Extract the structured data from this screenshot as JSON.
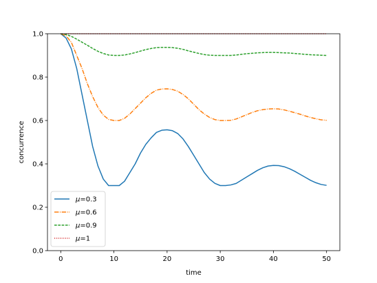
{
  "chart_data": {
    "type": "line",
    "title": "",
    "xlabel": "time",
    "ylabel": "concurrence",
    "xlim": [
      -2.5,
      52.5
    ],
    "ylim": [
      0.0,
      1.0
    ],
    "xticks": [
      0,
      10,
      20,
      30,
      40,
      50
    ],
    "yticks": [
      0.0,
      0.2,
      0.4,
      0.6,
      0.8,
      1.0
    ],
    "xtick_labels": [
      "0",
      "10",
      "20",
      "30",
      "40",
      "50"
    ],
    "ytick_labels": [
      "0.0",
      "0.2",
      "0.4",
      "0.6",
      "0.8",
      "1.0"
    ],
    "grid": false,
    "legend_position": "lower-left",
    "x": [
      0,
      1,
      2,
      3,
      4,
      5,
      6,
      7,
      8,
      9,
      10,
      11,
      12,
      13,
      14,
      15,
      16,
      17,
      18,
      19,
      20,
      21,
      22,
      23,
      24,
      25,
      26,
      27,
      28,
      29,
      30,
      31,
      32,
      33,
      34,
      35,
      36,
      37,
      38,
      39,
      40,
      41,
      42,
      43,
      44,
      45,
      46,
      47,
      48,
      49,
      50
    ],
    "series": [
      {
        "name": "μ=0.3",
        "label_prefix": "μ",
        "label_suffix": "=0.3",
        "color": "#1f77b4",
        "dash": "solid",
        "values": [
          1.0,
          0.98,
          0.93,
          0.84,
          0.72,
          0.6,
          0.48,
          0.39,
          0.33,
          0.3,
          0.3,
          0.3,
          0.32,
          0.36,
          0.4,
          0.45,
          0.49,
          0.52,
          0.545,
          0.555,
          0.557,
          0.553,
          0.54,
          0.515,
          0.48,
          0.44,
          0.4,
          0.36,
          0.33,
          0.31,
          0.3,
          0.3,
          0.303,
          0.31,
          0.325,
          0.34,
          0.355,
          0.37,
          0.382,
          0.39,
          0.393,
          0.392,
          0.387,
          0.378,
          0.366,
          0.352,
          0.338,
          0.324,
          0.313,
          0.305,
          0.301
        ]
      },
      {
        "name": "μ=0.6",
        "label_prefix": "μ",
        "label_suffix": "=0.6",
        "color": "#ff7f0e",
        "dash": "dashdot",
        "values": [
          1.0,
          0.99,
          0.96,
          0.9,
          0.84,
          0.77,
          0.71,
          0.66,
          0.625,
          0.605,
          0.6,
          0.6,
          0.61,
          0.63,
          0.655,
          0.68,
          0.705,
          0.725,
          0.74,
          0.745,
          0.746,
          0.743,
          0.735,
          0.72,
          0.7,
          0.675,
          0.65,
          0.63,
          0.614,
          0.604,
          0.6,
          0.6,
          0.601,
          0.607,
          0.617,
          0.627,
          0.637,
          0.645,
          0.65,
          0.653,
          0.654,
          0.653,
          0.649,
          0.643,
          0.636,
          0.629,
          0.621,
          0.614,
          0.608,
          0.603,
          0.601
        ]
      },
      {
        "name": "μ=0.9",
        "label_prefix": "μ",
        "label_suffix": "=0.9",
        "color": "#2ca02c",
        "dash": "dashed",
        "values": [
          1.0,
          0.996,
          0.988,
          0.975,
          0.961,
          0.947,
          0.932,
          0.919,
          0.909,
          0.902,
          0.9,
          0.9,
          0.902,
          0.907,
          0.913,
          0.92,
          0.927,
          0.932,
          0.936,
          0.937,
          0.937,
          0.936,
          0.933,
          0.928,
          0.921,
          0.915,
          0.909,
          0.904,
          0.901,
          0.9,
          0.9,
          0.9,
          0.9,
          0.902,
          0.905,
          0.908,
          0.91,
          0.912,
          0.913,
          0.914,
          0.914,
          0.913,
          0.912,
          0.911,
          0.909,
          0.907,
          0.905,
          0.903,
          0.902,
          0.901,
          0.9
        ]
      },
      {
        "name": "μ=1",
        "label_prefix": "μ",
        "label_suffix": "=1",
        "color": "#d62728",
        "dash": "dotted",
        "values": [
          1.0,
          1.0,
          1.0,
          1.0,
          1.0,
          1.0,
          1.0,
          1.0,
          1.0,
          1.0,
          1.0,
          1.0,
          1.0,
          1.0,
          1.0,
          1.0,
          1.0,
          1.0,
          1.0,
          1.0,
          1.0,
          1.0,
          1.0,
          1.0,
          1.0,
          1.0,
          1.0,
          1.0,
          1.0,
          1.0,
          1.0,
          1.0,
          1.0,
          1.0,
          1.0,
          1.0,
          1.0,
          1.0,
          1.0,
          1.0,
          1.0,
          1.0,
          1.0,
          1.0,
          1.0,
          1.0,
          1.0,
          1.0,
          1.0,
          1.0,
          1.0
        ]
      }
    ]
  }
}
